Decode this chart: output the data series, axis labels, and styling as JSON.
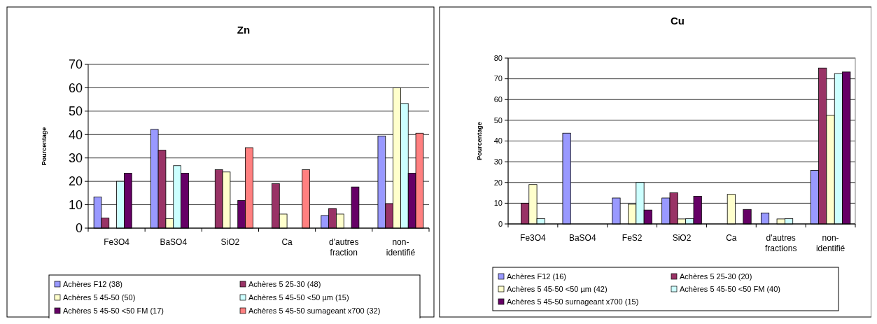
{
  "chart_data": [
    {
      "type": "bar",
      "title": "Zn",
      "ylabel": "Pourcentage",
      "categories": [
        "Fe3O4",
        "BaSO4",
        "SiO2",
        "Ca",
        "d'autres fraction",
        "non-identifié"
      ],
      "ylim": [
        0,
        70
      ],
      "yticks": [
        0,
        10,
        20,
        30,
        40,
        50,
        60,
        70
      ],
      "grid": "y",
      "legend": "bottom",
      "series": [
        {
          "name": "Achères F12 (38)",
          "color": "#9999ff",
          "values": [
            13.3,
            42.2,
            null,
            null,
            5.4,
            39.4
          ]
        },
        {
          "name": "Achères 5 25-30 (48)",
          "color": "#993366",
          "values": [
            4.3,
            33.3,
            25,
            19,
            8.4,
            10.5
          ]
        },
        {
          "name": "Achères 5 45-50 (50)",
          "color": "#ffffcc",
          "values": [
            null,
            4,
            24,
            6,
            6,
            60
          ]
        },
        {
          "name": "Achères 5 45-50 <50 µm (15)",
          "color": "#ccffff",
          "values": [
            20,
            26.7,
            null,
            null,
            null,
            53.3
          ]
        },
        {
          "name": "Achères 5 45-50 <50 FM (17)",
          "color": "#660066",
          "values": [
            23.5,
            23.5,
            11.8,
            null,
            17.6,
            23.5
          ]
        },
        {
          "name": "Achères 5 45-50 surnageant x700 (32)",
          "color": "#ff8080",
          "values": [
            null,
            null,
            34.4,
            25,
            null,
            40.6
          ]
        }
      ]
    },
    {
      "type": "bar",
      "title": "Cu",
      "ylabel": "Pourcentage",
      "categories": [
        "Fe3O4",
        "BaSO4",
        "FeS2",
        "SiO2",
        "Ca",
        "d'autres fractions",
        "non-identifié"
      ],
      "ylim": [
        0,
        80
      ],
      "yticks": [
        0,
        10,
        20,
        30,
        40,
        50,
        60,
        70,
        80
      ],
      "grid": "y",
      "legend": "bottom",
      "series": [
        {
          "name": "Achères F12 (16)",
          "color": "#9999ff",
          "values": [
            null,
            43.8,
            12.5,
            12.5,
            null,
            5.3,
            25.8
          ]
        },
        {
          "name": "Achères 5 25-30 (20)",
          "color": "#993366",
          "values": [
            10,
            null,
            null,
            15,
            null,
            null,
            75.2
          ]
        },
        {
          "name": "Achères 5 45-50 <50 µm (42)",
          "color": "#ffffcc",
          "values": [
            19,
            null,
            9.5,
            2.4,
            14.3,
            2.4,
            52.4
          ]
        },
        {
          "name": "Achères 5 45-50 <50 FM (40)",
          "color": "#ccffff",
          "values": [
            2.5,
            null,
            20,
            2.5,
            null,
            2.5,
            72.5
          ]
        },
        {
          "name": "Achères 5 45-50 surnageant x700 (15)",
          "color": "#660066",
          "values": [
            null,
            null,
            6.7,
            13.3,
            7,
            null,
            73.3
          ]
        }
      ]
    }
  ]
}
